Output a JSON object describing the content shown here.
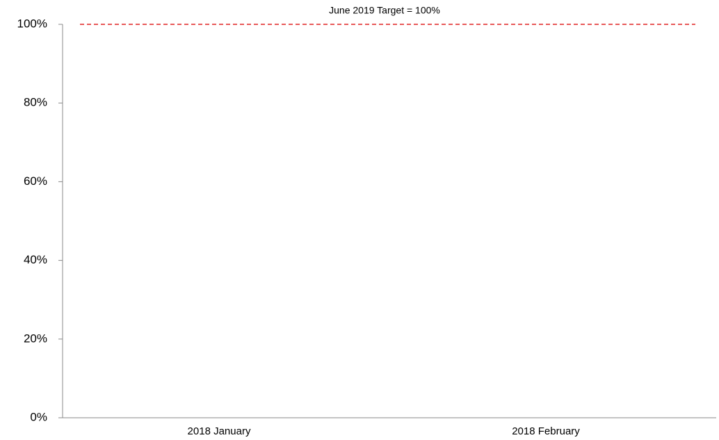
{
  "chart_data": {
    "type": "bar",
    "categories": [
      "2018 January",
      "2018 February"
    ],
    "ylim": [
      0,
      100
    ],
    "yticks": [
      {
        "value": 0,
        "label": "0%"
      },
      {
        "value": 20,
        "label": "20%"
      },
      {
        "value": 40,
        "label": "40%"
      },
      {
        "value": 60,
        "label": "60%"
      },
      {
        "value": 80,
        "label": "80%"
      },
      {
        "value": 100,
        "label": "100%"
      }
    ],
    "target": {
      "value": 100,
      "label": "June 2019 Target =  100%",
      "color": "#e02020"
    }
  }
}
